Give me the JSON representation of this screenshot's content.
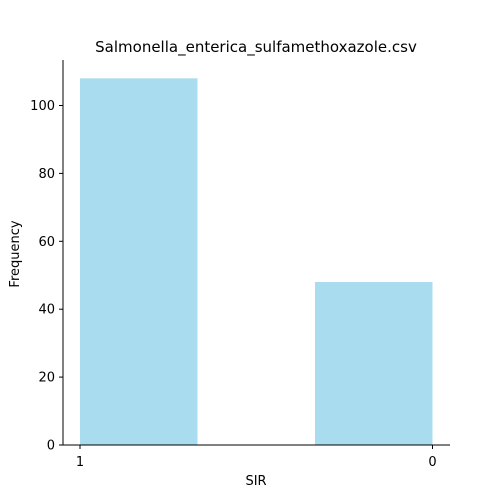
{
  "chart_data": {
    "type": "bar",
    "title": "Salmonella_enterica_sulfamethoxazole.csv",
    "xlabel": "SIR",
    "ylabel": "Frequency",
    "categories": [
      "1",
      "0"
    ],
    "series": [
      {
        "values": [
          108,
          48
        ]
      }
    ],
    "x_ticks": [
      "1",
      "0"
    ],
    "y_ticks": [
      0,
      20,
      40,
      60,
      80,
      100
    ],
    "ylim": [
      0,
      113.4
    ],
    "grid": false,
    "legend": "none",
    "bar_color": "#a8dcee",
    "axis_color": "#000000"
  }
}
